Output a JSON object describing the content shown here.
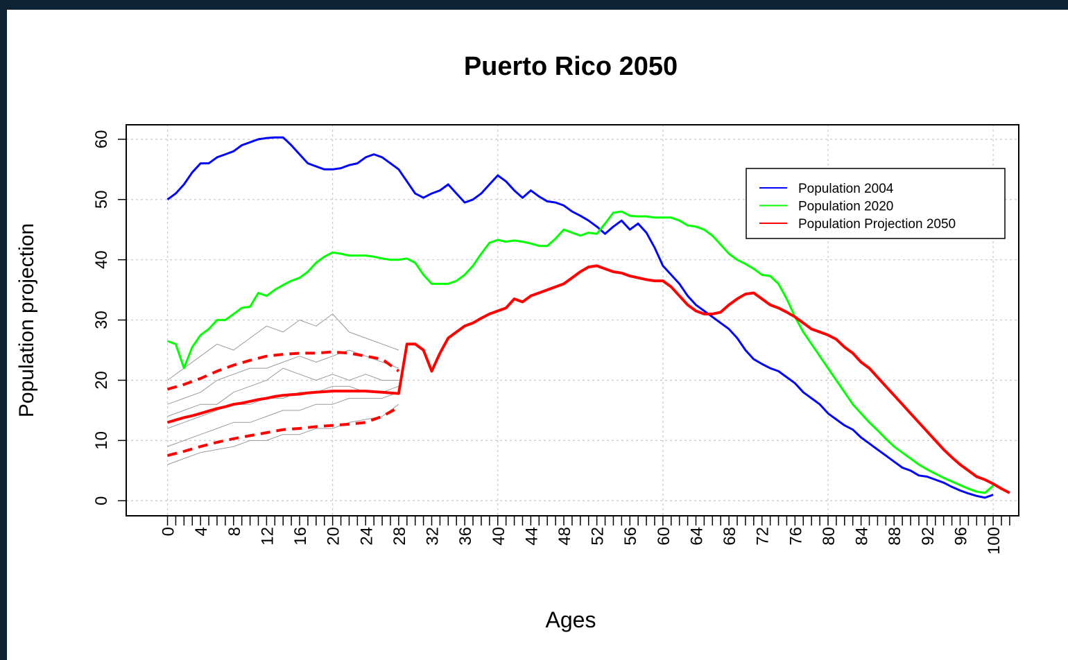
{
  "chart_data": {
    "type": "line",
    "title": "Puerto Rico 2050",
    "xlabel": "Ages",
    "ylabel": "Population projection",
    "x": [
      0,
      1,
      2,
      3,
      4,
      5,
      6,
      7,
      8,
      9,
      10,
      11,
      12,
      13,
      14,
      15,
      16,
      17,
      18,
      19,
      20,
      21,
      22,
      23,
      24,
      25,
      26,
      27,
      28,
      29,
      30,
      31,
      32,
      33,
      34,
      35,
      36,
      37,
      38,
      39,
      40,
      41,
      42,
      43,
      44,
      45,
      46,
      47,
      48,
      49,
      50,
      51,
      52,
      53,
      54,
      55,
      56,
      57,
      58,
      59,
      60,
      61,
      62,
      63,
      64,
      65,
      66,
      67,
      68,
      69,
      70,
      71,
      72,
      73,
      74,
      75,
      76,
      77,
      78,
      79,
      80,
      81,
      82,
      83,
      84,
      85,
      86,
      87,
      88,
      89,
      90,
      91,
      92,
      93,
      94,
      95,
      96,
      97,
      98,
      99,
      100,
      101,
      102
    ],
    "series": [
      {
        "name": "Population 2004",
        "color": "#0000ff",
        "values": [
          50,
          51,
          52.5,
          54.5,
          56,
          56,
          57,
          57.5,
          58,
          59,
          59.5,
          60,
          60.2,
          60.3,
          60.3,
          59,
          57.5,
          56,
          55.5,
          55,
          55,
          55.2,
          55.7,
          56,
          57,
          57.5,
          57,
          56,
          55,
          53,
          51,
          50.3,
          51,
          51.5,
          52.5,
          51,
          49.5,
          50,
          51,
          52.5,
          54,
          53,
          51.5,
          50.3,
          51.5,
          50.5,
          49.7,
          49.5,
          49,
          48,
          47.3,
          46.5,
          45.5,
          44.3,
          45.5,
          46.5,
          45,
          46,
          44.5,
          42,
          39,
          37.5,
          36,
          34,
          32.5,
          31.5,
          30.5,
          29.5,
          28.5,
          27,
          25,
          23.5,
          22.7,
          22,
          21.5,
          20.5,
          19.5,
          18,
          17,
          16,
          14.5,
          13.5,
          12.5,
          11.8,
          10.5,
          9.5,
          8.5,
          7.5,
          6.5,
          5.5,
          5,
          4.2,
          4,
          3.5,
          3,
          2.3,
          1.7,
          1.2,
          0.8,
          0.5,
          1,
          null,
          null
        ]
      },
      {
        "name": "Population 2020",
        "color": "#00ff00",
        "values": [
          26.5,
          26,
          22,
          25.5,
          27.5,
          28.5,
          30,
          30,
          31,
          32,
          32.2,
          34.5,
          34,
          35,
          35.8,
          36.5,
          37,
          38,
          39.5,
          40.5,
          41.2,
          41,
          40.7,
          40.7,
          40.7,
          40.5,
          40.2,
          40,
          40,
          40.2,
          39.5,
          37.5,
          36,
          36,
          36,
          36.5,
          37.5,
          39,
          41,
          42.8,
          43.3,
          43,
          43.2,
          43,
          42.7,
          42.3,
          42.3,
          43.5,
          45,
          44.5,
          44,
          44.5,
          44.3,
          46,
          47.8,
          48,
          47.3,
          47.2,
          47.2,
          47,
          47,
          47,
          46.5,
          45.7,
          45.5,
          45,
          44,
          42.5,
          41,
          40,
          39.3,
          38.5,
          37.5,
          37.3,
          36,
          33.5,
          30.5,
          28,
          26,
          24,
          22,
          20,
          18,
          16,
          14.5,
          13,
          11.7,
          10.3,
          9,
          8,
          7,
          6,
          5.2,
          4.5,
          3.8,
          3.2,
          2.6,
          2,
          1.5,
          1.3,
          2.5,
          null,
          null
        ]
      },
      {
        "name": "Population Projection 2050",
        "color": "#ff0000",
        "values": [
          13,
          13.4,
          13.8,
          14.1,
          14.5,
          14.9,
          15.3,
          15.6,
          16,
          16.2,
          16.5,
          16.8,
          17,
          17.3,
          17.5,
          17.6,
          17.7,
          17.9,
          18,
          18.1,
          18.2,
          18.2,
          18.2,
          18.2,
          18.2,
          18.1,
          18,
          17.9,
          17.8,
          26,
          26,
          25,
          21.5,
          24.5,
          27,
          28,
          29,
          29.5,
          30.3,
          31,
          31.5,
          32,
          33.5,
          33,
          34,
          34.5,
          35,
          35.5,
          36,
          37,
          38,
          38.8,
          39,
          38.5,
          38,
          37.8,
          37.3,
          37,
          36.7,
          36.5,
          36.5,
          35.5,
          34,
          32.5,
          31.5,
          31,
          31,
          31.3,
          32.5,
          33.5,
          34.3,
          34.5,
          33.5,
          32.5,
          32,
          31.3,
          30.5,
          29.5,
          28.5,
          28,
          27.5,
          26.8,
          25.5,
          24.5,
          23,
          22,
          20.5,
          19,
          17.5,
          16,
          14.5,
          13,
          11.5,
          10,
          8.5,
          7.2,
          6,
          5,
          4,
          3.5,
          2.8,
          2,
          1.3
        ]
      }
    ],
    "bands": [
      {
        "color": "#ff0000",
        "x": [
          0,
          2,
          4,
          6,
          8,
          10,
          12,
          14,
          16,
          18,
          20,
          22,
          24,
          26,
          28
        ],
        "values": [
          18.5,
          19.3,
          20.3,
          21.5,
          22.5,
          23.3,
          24,
          24.3,
          24.5,
          24.5,
          24.7,
          24.5,
          24,
          23.5,
          21.5
        ]
      },
      {
        "color": "#ff0000",
        "x": [
          0,
          2,
          4,
          6,
          8,
          10,
          12,
          14,
          16,
          18,
          20,
          22,
          24,
          26,
          28
        ],
        "values": [
          7.5,
          8.2,
          9,
          9.7,
          10.3,
          10.8,
          11.3,
          11.8,
          12,
          12.3,
          12.5,
          12.7,
          13,
          14,
          15.5
        ]
      }
    ],
    "simulations": [
      {
        "color": "#9a9a9a",
        "x": [
          0,
          2,
          4,
          6,
          8,
          10,
          12,
          14,
          16,
          18,
          20,
          22,
          24,
          26,
          28
        ],
        "values": [
          20,
          22,
          24,
          26,
          25,
          27,
          29,
          28,
          30,
          29,
          31,
          28,
          27,
          26,
          25
        ]
      },
      {
        "color": "#9a9a9a",
        "x": [
          0,
          2,
          4,
          6,
          8,
          10,
          12,
          14,
          16,
          18,
          20,
          22,
          24,
          26,
          28
        ],
        "values": [
          6,
          7,
          8,
          8.5,
          9,
          10,
          10,
          11,
          11,
          12,
          12,
          13,
          13.5,
          14,
          16
        ]
      },
      {
        "color": "#9a9a9a",
        "x": [
          0,
          2,
          4,
          6,
          8,
          10,
          12,
          14,
          16,
          18,
          20,
          22,
          24,
          26,
          28
        ],
        "values": [
          12,
          13,
          14,
          15,
          16,
          16,
          17,
          17,
          18,
          18,
          19,
          19,
          18,
          18,
          19
        ]
      },
      {
        "color": "#9a9a9a",
        "x": [
          0,
          2,
          4,
          6,
          8,
          10,
          12,
          14,
          16,
          18,
          20,
          22,
          24,
          26,
          28
        ],
        "values": [
          16,
          17,
          18,
          20,
          21,
          22,
          22,
          23,
          24,
          23,
          24,
          25,
          24,
          23,
          22
        ]
      },
      {
        "color": "#9a9a9a",
        "x": [
          0,
          2,
          4,
          6,
          8,
          10,
          12,
          14,
          16,
          18,
          20,
          22,
          24,
          26,
          28
        ],
        "values": [
          9,
          10,
          11,
          12,
          13,
          13,
          14,
          15,
          15,
          16,
          16,
          17,
          17,
          17,
          18
        ]
      },
      {
        "color": "#9a9a9a",
        "x": [
          0,
          2,
          4,
          6,
          8,
          10,
          12,
          14,
          16,
          18,
          20,
          22,
          24,
          26,
          28
        ],
        "values": [
          14,
          15,
          16,
          16,
          18,
          19,
          20,
          22,
          21,
          20,
          21,
          20,
          21,
          20,
          20
        ]
      }
    ],
    "xlim": [
      -5,
      103.1
    ],
    "ylim": [
      -2.5,
      62.4
    ],
    "xticks": [
      0,
      4,
      8,
      12,
      16,
      20,
      24,
      28,
      32,
      36,
      40,
      44,
      48,
      52,
      56,
      60,
      64,
      68,
      72,
      76,
      80,
      84,
      88,
      92,
      96,
      100
    ],
    "xminorticks": [
      0,
      1,
      2,
      3,
      4,
      5,
      6,
      7,
      8,
      9,
      10,
      11,
      12,
      13,
      14,
      15,
      16,
      17,
      18,
      19,
      20,
      21,
      22,
      23,
      24,
      25,
      26,
      27,
      28,
      29,
      30,
      31,
      32,
      33,
      34,
      35,
      36,
      37,
      38,
      39,
      40,
      41,
      42,
      43,
      44,
      45,
      46,
      47,
      48,
      49,
      50,
      51,
      52,
      53,
      54,
      55,
      56,
      57,
      58,
      59,
      60,
      61,
      62,
      63,
      64,
      65,
      66,
      67,
      68,
      69,
      70,
      71,
      72,
      73,
      74,
      75,
      76,
      77,
      78,
      79,
      80,
      81,
      82,
      83,
      84,
      85,
      86,
      87,
      88,
      89,
      90,
      91,
      92,
      93,
      94,
      95,
      96,
      97,
      98,
      99,
      100,
      101,
      102
    ],
    "xgrid": [
      0,
      20,
      40,
      60,
      80,
      100
    ],
    "yticks": [
      0,
      10,
      20,
      30,
      40,
      50,
      60
    ],
    "grid": true,
    "legend": "top-right"
  }
}
